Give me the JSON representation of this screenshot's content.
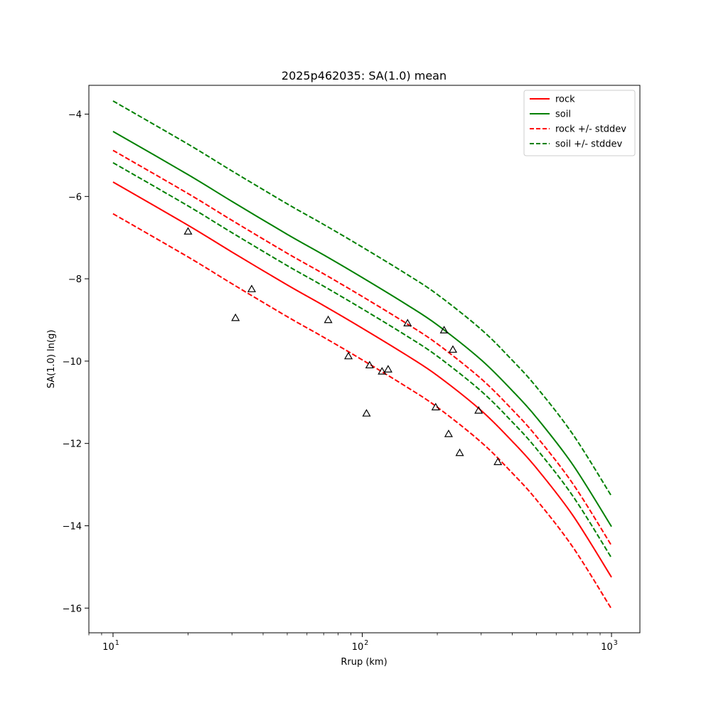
{
  "chart_data": {
    "type": "line",
    "title": "2025p462035: SA(1.0) mean",
    "xlabel": "Rrup (km)",
    "ylabel": "SA(1.0) ln(g)",
    "xscale": "log",
    "xlim": [
      8.0,
      1300
    ],
    "ylim": [
      -16.6,
      -3.3
    ],
    "x_ticks": [
      10,
      100,
      1000
    ],
    "x_tick_labels": [
      {
        "base": "10",
        "exp": "1"
      },
      {
        "base": "10",
        "exp": "2"
      },
      {
        "base": "10",
        "exp": "3"
      }
    ],
    "y_ticks": [
      -4,
      -6,
      -8,
      -10,
      -12,
      -14,
      -16
    ],
    "y_tick_labels": [
      "−4",
      "−6",
      "−8",
      "−10",
      "−12",
      "−14",
      "−16"
    ],
    "grid": false,
    "legend_position": "top-right",
    "x": [
      10,
      20,
      30,
      50,
      70,
      100,
      150,
      200,
      300,
      400,
      500,
      700,
      1000
    ],
    "series": [
      {
        "name": "rock",
        "color": "#ff0000",
        "style": "solid",
        "values": [
          -5.65,
          -6.7,
          -7.35,
          -8.15,
          -8.65,
          -9.2,
          -9.85,
          -10.35,
          -11.2,
          -11.95,
          -12.6,
          -13.75,
          -15.25
        ]
      },
      {
        "name": "soil",
        "color": "#008000",
        "style": "solid",
        "values": [
          -4.42,
          -5.47,
          -6.12,
          -6.92,
          -7.42,
          -7.97,
          -8.62,
          -9.12,
          -9.97,
          -10.72,
          -11.37,
          -12.52,
          -14.02
        ]
      },
      {
        "name": "rock +/- stddev",
        "color": "#ff0000",
        "style": "dashed",
        "values": [
          -4.88,
          -5.93,
          -6.58,
          -7.38,
          -7.88,
          -8.43,
          -9.08,
          -9.58,
          -10.43,
          -11.18,
          -11.83,
          -12.98,
          -14.48
        ]
      },
      {
        "name": "",
        "color": "#ff0000",
        "style": "dashed",
        "legend": false,
        "values": [
          -6.42,
          -7.47,
          -8.12,
          -8.92,
          -9.42,
          -9.97,
          -10.62,
          -11.12,
          -11.97,
          -12.72,
          -13.37,
          -14.52,
          -16.02
        ]
      },
      {
        "name": "soil +/- stddev",
        "color": "#008000",
        "style": "dashed",
        "values": [
          -5.18,
          -6.23,
          -6.88,
          -7.68,
          -8.18,
          -8.73,
          -9.38,
          -9.88,
          -10.73,
          -11.48,
          -12.13,
          -13.28,
          -14.78
        ]
      },
      {
        "name": "",
        "color": "#008000",
        "style": "dashed",
        "legend": false,
        "values": [
          -3.68,
          -4.73,
          -5.38,
          -6.18,
          -6.68,
          -7.23,
          -7.88,
          -8.38,
          -9.23,
          -9.98,
          -10.63,
          -11.78,
          -13.28
        ]
      }
    ],
    "observations": {
      "marker": "triangle",
      "color": "#000000",
      "points": [
        {
          "x": 20,
          "y": -6.85
        },
        {
          "x": 31,
          "y": -8.95
        },
        {
          "x": 36,
          "y": -8.25
        },
        {
          "x": 73,
          "y": -9.0
        },
        {
          "x": 88,
          "y": -9.88
        },
        {
          "x": 104,
          "y": -11.27
        },
        {
          "x": 107,
          "y": -10.1
        },
        {
          "x": 120,
          "y": -10.25
        },
        {
          "x": 127,
          "y": -10.2
        },
        {
          "x": 152,
          "y": -9.08
        },
        {
          "x": 197,
          "y": -11.12
        },
        {
          "x": 213,
          "y": -9.25
        },
        {
          "x": 222,
          "y": -11.77
        },
        {
          "x": 231,
          "y": -9.72
        },
        {
          "x": 246,
          "y": -12.23
        },
        {
          "x": 293,
          "y": -11.2
        },
        {
          "x": 350,
          "y": -12.45
        }
      ]
    }
  }
}
